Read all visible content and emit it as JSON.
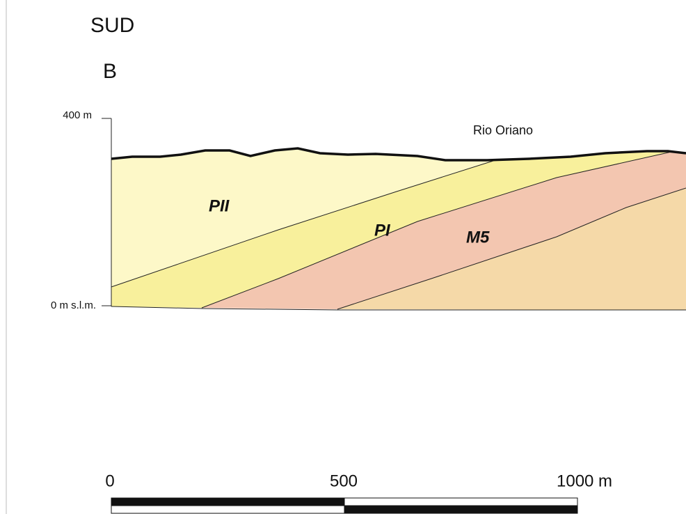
{
  "header": {
    "title": "SUD",
    "section": "B"
  },
  "axis": {
    "top_label": "400 m",
    "bottom_label": "0 m s.l.m."
  },
  "annotations": {
    "river": "Rio Oriano"
  },
  "layers": [
    "PII",
    "PI",
    "M5"
  ],
  "scale_bar": {
    "labels": [
      "0",
      "500",
      "1000 m"
    ]
  }
}
